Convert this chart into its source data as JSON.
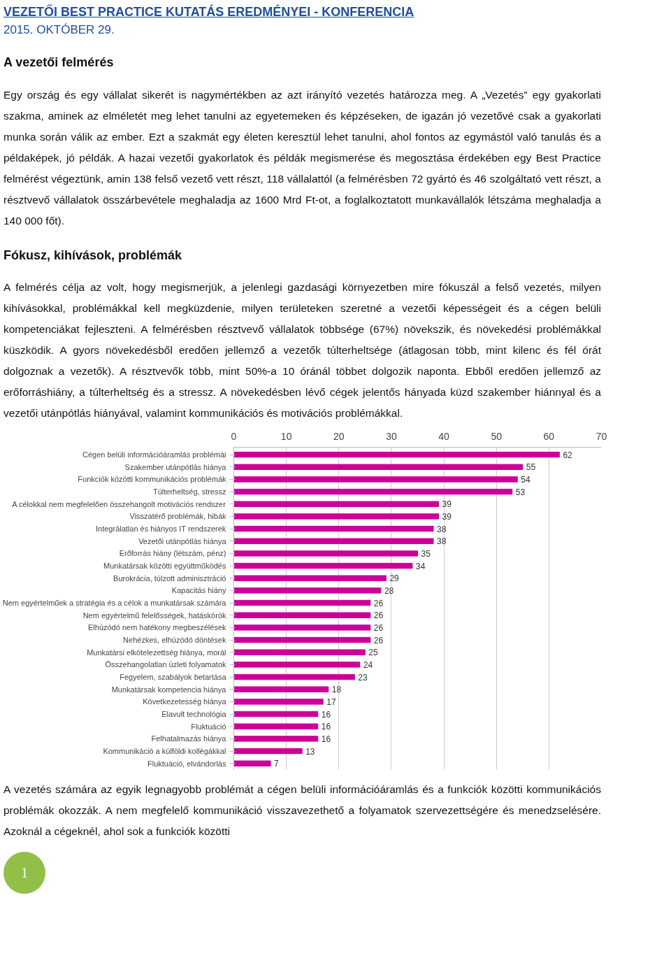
{
  "chart_data": {
    "type": "bar",
    "orientation": "horizontal",
    "title": "VEZETŐI BEST PRACTICE KUTATÁS EREDMÉNYEI - KONFERENCIA",
    "subtitle": "2015. OKTÓBER 29.",
    "annotations": [
      "A vezetői felmérés",
      "Egy ország és egy vállalat sikerét is nagymértékben az azt irányító vezetés határozza meg. A „Vezetés” egy gyakorlati szakma, aminek az elméletét meg lehet tanulni az egyetemeken és képzéseken, de igazán jó vezetővé csak a gyakorlati munka során válik az ember. Ezt a szakmát egy életen keresztül lehet tanulni, ahol fontos az egymástól való tanulás és a példaképek, jó példák. A hazai vezetői gyakorlatok és példák megismerése és megosztása érdekében egy Best Practice felmérést végeztünk, amin 138 felső vezető vett részt, 118 vállalattól (a felmérésben 72 gyártó és 46 szolgáltató vett részt, a résztvevő vállalatok összárbevétele meghaladja az 1600 Mrd Ft-ot, a foglalkoztatott munkavállalók létszáma meghaladja a 140 000 főt).",
      "Fókusz, kihívások, problémák",
      "A felmérés célja az volt, hogy megismerjük, a jelenlegi gazdasági környezetben mire fókuszál a felső vezetés, milyen kihívásokkal, problémákkal kell megküzdenie, milyen területeken szeretné a vezetői képességeit és a cégen belüli kompetenciákat fejleszteni. A felmérésben résztvevő vállalatok többsége (67%) növekszik, és növekedési problémákkal küszködik. A gyors növekedésből eredően jellemző a vezetők túlterheltsége (átlagosan több, mint kilenc és fél órát dolgoznak a vezetők). A résztvevők több, mint 50%-a 10 óránál többet dolgozik naponta. Ebből eredően jellemző az erőforráshiány, a túlterheltség és a stressz. A növekedésben lévő cégek jelentős hányada küzd szakember hiánnyal és a vezetői utánpótlás hiányával, valamint kommunikációs és motivációs problémákkal.",
      "A vezetés számára az egyik legnagyobb problémát a cégen belüli információáramlás és a funkciók közötti kommunikációs problémák okozzák. A nem megfelelő kommunikáció visszavezethető a folyamatok szervezettségére és menedzselésére. Azoknál a cégeknél, ahol sok a funkciók közötti",
      "1"
    ],
    "categories": [
      "Cégen belüli információáramlás problémái",
      "Szakember utánpótlás hiánya",
      "Funkciók közötti kommunikációs problémák",
      "Túlterheltség, stressz",
      "A célokkal nem megfelelően összehangolt motivációs rendszer",
      "Visszatérő problémák, hibák",
      "Integrálatlan és hiányos IT rendszerek",
      "Vezetői utánpótlás hiánya",
      "Erőforrás hiány (létszám, pénz)",
      "Munkatársak közötti együttműködés",
      "Burokrácia, túlzott adminisztráció",
      "Kapacitás hiány",
      "Nem egyértelműek a stratégia és a célok a munkatársak számára",
      "Nem egyértelmű felelősségek, hatáskörök",
      "Elhúzódó nem hatékony megbeszélések",
      "Nehézkes, elhúzódó döntések",
      "Munkatársi elkötelezettség hiánya, morál",
      "Összehangolatlan üzleti folyamatok",
      "Fegyelem, szabályok betartása",
      "Munkatársak kompetencia hiánya",
      "Következetesség hiánya",
      "Elavult technológia",
      "Fluktuáció",
      "Felhatalmazás hiánya",
      "Kommunikáció a külföldi kollégákkal",
      "Fluktuáció, elvándorlás"
    ],
    "values": [
      62,
      55,
      54,
      53,
      39,
      39,
      38,
      38,
      35,
      34,
      29,
      28,
      26,
      26,
      26,
      26,
      25,
      24,
      23,
      18,
      17,
      16,
      16,
      16,
      13,
      7
    ],
    "color": "#cc0099",
    "xlim": [
      0,
      70
    ],
    "xticks": [
      0,
      10,
      20,
      30,
      40,
      50,
      60,
      70
    ],
    "grid": "x",
    "data_labels": true
  }
}
